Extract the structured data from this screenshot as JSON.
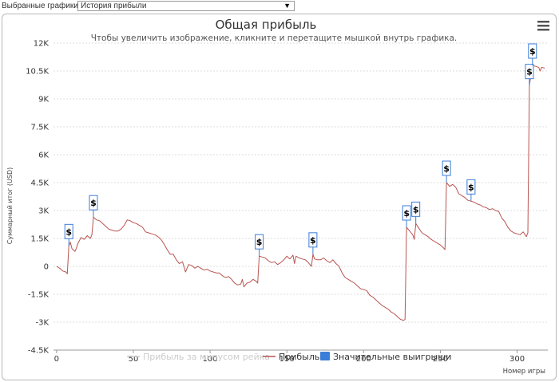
{
  "toolbar": {
    "selector_label": "Выбранные графики:",
    "selected_chart": "История прибыли"
  },
  "colors": {
    "profit_line": "#b85450",
    "rake_line": "#cccccc",
    "big_win": "#3b7dd8",
    "grid": "#dddddd"
  },
  "chart_data": {
    "type": "line",
    "title": "Общая прибыль",
    "subtitle": "Чтобы увеличить изображение, кликните и перетащите мышкой внутрь графика.",
    "xlabel": "Номер игры",
    "ylabel": "Суммарный итог (USD)",
    "xlim": [
      -2,
      320
    ],
    "ylim": [
      -4500,
      12000
    ],
    "xticks": [
      0,
      50,
      100,
      150,
      200,
      250,
      300
    ],
    "yticks": [
      12000,
      10500,
      9000,
      7500,
      6000,
      4500,
      3000,
      1500,
      0,
      -1500,
      -3000,
      -4500
    ],
    "ytick_labels": [
      "12K",
      "10.5K",
      "9K",
      "7.5K",
      "6K",
      "4.5K",
      "3K",
      "1.5K",
      "0",
      "-1.5K",
      "-3K",
      "-4.5K"
    ],
    "grid": "horizontal dashed",
    "legend": [
      "Прибыль за минусом рейка",
      "Прибыль",
      "Значительные выигрыши"
    ],
    "series": [
      {
        "name": "Прибыль",
        "points": [
          [
            0,
            0
          ],
          [
            2,
            -100
          ],
          [
            4,
            -250
          ],
          [
            6,
            -300
          ],
          [
            7,
            -400
          ],
          [
            8,
            1100
          ],
          [
            9,
            1300
          ],
          [
            10,
            950
          ],
          [
            12,
            800
          ],
          [
            13,
            1000
          ],
          [
            14,
            1250
          ],
          [
            16,
            1550
          ],
          [
            18,
            1450
          ],
          [
            20,
            1650
          ],
          [
            22,
            1500
          ],
          [
            23,
            1700
          ],
          [
            24,
            2650
          ],
          [
            26,
            2500
          ],
          [
            28,
            2450
          ],
          [
            30,
            2300
          ],
          [
            32,
            2150
          ],
          [
            34,
            2000
          ],
          [
            36,
            1950
          ],
          [
            38,
            1900
          ],
          [
            40,
            1900
          ],
          [
            42,
            2000
          ],
          [
            44,
            2200
          ],
          [
            46,
            2500
          ],
          [
            48,
            2450
          ],
          [
            50,
            2350
          ],
          [
            52,
            2300
          ],
          [
            54,
            2200
          ],
          [
            56,
            2100
          ],
          [
            58,
            1850
          ],
          [
            60,
            1800
          ],
          [
            62,
            1750
          ],
          [
            64,
            1700
          ],
          [
            66,
            1600
          ],
          [
            68,
            1450
          ],
          [
            70,
            1200
          ],
          [
            72,
            900
          ],
          [
            74,
            650
          ],
          [
            76,
            650
          ],
          [
            78,
            350
          ],
          [
            80,
            150
          ],
          [
            82,
            250
          ],
          [
            84,
            -300
          ],
          [
            86,
            100
          ],
          [
            88,
            50
          ],
          [
            90,
            -100
          ],
          [
            92,
            0
          ],
          [
            94,
            -100
          ],
          [
            96,
            -200
          ],
          [
            98,
            -150
          ],
          [
            100,
            -250
          ],
          [
            102,
            -300
          ],
          [
            104,
            -350
          ],
          [
            106,
            -350
          ],
          [
            108,
            -500
          ],
          [
            110,
            -600
          ],
          [
            112,
            -550
          ],
          [
            114,
            -700
          ],
          [
            116,
            -900
          ],
          [
            118,
            -1000
          ],
          [
            120,
            -950
          ],
          [
            121,
            -700
          ],
          [
            122,
            -1100
          ],
          [
            124,
            -900
          ],
          [
            126,
            -850
          ],
          [
            128,
            -700
          ],
          [
            130,
            -800
          ],
          [
            131,
            -900
          ],
          [
            132,
            550
          ],
          [
            134,
            500
          ],
          [
            136,
            450
          ],
          [
            138,
            300
          ],
          [
            140,
            200
          ],
          [
            142,
            250
          ],
          [
            144,
            100
          ],
          [
            146,
            200
          ],
          [
            148,
            350
          ],
          [
            150,
            550
          ],
          [
            152,
            400
          ],
          [
            154,
            600
          ],
          [
            155,
            150
          ],
          [
            156,
            550
          ],
          [
            158,
            450
          ],
          [
            160,
            400
          ],
          [
            162,
            350
          ],
          [
            164,
            200
          ],
          [
            166,
            0
          ],
          [
            167,
            650
          ],
          [
            168,
            400
          ],
          [
            170,
            350
          ],
          [
            172,
            350
          ],
          [
            174,
            450
          ],
          [
            176,
            300
          ],
          [
            178,
            200
          ],
          [
            180,
            350
          ],
          [
            182,
            150
          ],
          [
            184,
            0
          ],
          [
            186,
            -350
          ],
          [
            188,
            -600
          ],
          [
            190,
            -700
          ],
          [
            192,
            -800
          ],
          [
            194,
            -900
          ],
          [
            196,
            -1050
          ],
          [
            198,
            -1200
          ],
          [
            200,
            -1250
          ],
          [
            202,
            -1300
          ],
          [
            204,
            -1550
          ],
          [
            206,
            -1650
          ],
          [
            208,
            -1800
          ],
          [
            210,
            -1950
          ],
          [
            212,
            -2100
          ],
          [
            214,
            -2200
          ],
          [
            216,
            -2300
          ],
          [
            218,
            -2450
          ],
          [
            220,
            -2550
          ],
          [
            222,
            -2700
          ],
          [
            224,
            -2850
          ],
          [
            226,
            -2900
          ],
          [
            227,
            -2850
          ],
          [
            228,
            2100
          ],
          [
            230,
            1900
          ],
          [
            232,
            1700
          ],
          [
            233,
            1450
          ],
          [
            234,
            2300
          ],
          [
            236,
            2050
          ],
          [
            238,
            1800
          ],
          [
            240,
            1700
          ],
          [
            242,
            1600
          ],
          [
            244,
            1450
          ],
          [
            246,
            1350
          ],
          [
            248,
            1250
          ],
          [
            250,
            1150
          ],
          [
            252,
            1000
          ],
          [
            253,
            900
          ],
          [
            254,
            4500
          ],
          [
            256,
            4300
          ],
          [
            258,
            4400
          ],
          [
            260,
            4250
          ],
          [
            262,
            3900
          ],
          [
            264,
            3800
          ],
          [
            266,
            3700
          ],
          [
            268,
            3550
          ],
          [
            270,
            3500
          ],
          [
            272,
            3450
          ],
          [
            274,
            3350
          ],
          [
            276,
            3300
          ],
          [
            278,
            3200
          ],
          [
            280,
            3150
          ],
          [
            282,
            3050
          ],
          [
            284,
            3100
          ],
          [
            286,
            3000
          ],
          [
            288,
            2950
          ],
          [
            290,
            2600
          ],
          [
            292,
            2400
          ],
          [
            294,
            2100
          ],
          [
            296,
            1900
          ],
          [
            298,
            1800
          ],
          [
            300,
            1750
          ],
          [
            302,
            1700
          ],
          [
            304,
            1850
          ],
          [
            306,
            1600
          ],
          [
            307,
            1800
          ],
          [
            308,
            9700
          ],
          [
            309,
            10300
          ],
          [
            310,
            10800
          ],
          [
            312,
            10750
          ],
          [
            314,
            10700
          ],
          [
            315,
            10500
          ],
          [
            316,
            10700
          ],
          [
            318,
            10650
          ]
        ]
      }
    ],
    "big_wins": [
      [
        8,
        1100
      ],
      [
        24,
        2650
      ],
      [
        132,
        550
      ],
      [
        167,
        650
      ],
      [
        228,
        2100
      ],
      [
        234,
        2300
      ],
      [
        254,
        4500
      ],
      [
        270,
        3500
      ],
      [
        308,
        9700
      ],
      [
        310,
        10800
      ]
    ]
  }
}
